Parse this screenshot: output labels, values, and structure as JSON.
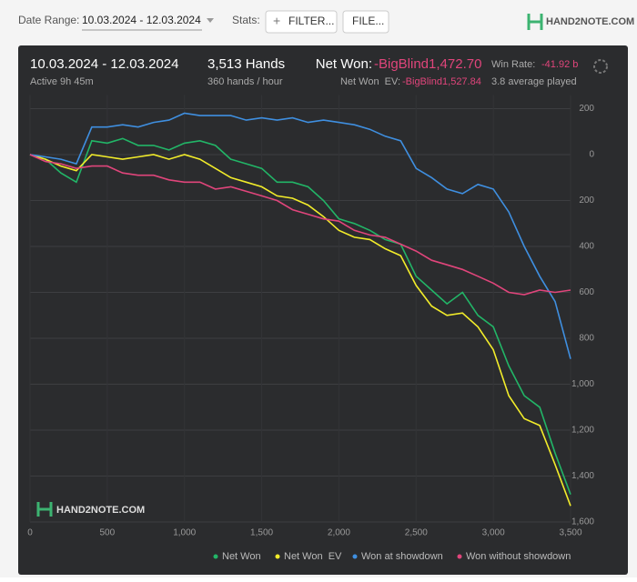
{
  "toolbar": {
    "date_label": "Date Range:",
    "date_value": "10.03.2024 - 12.03.2024",
    "stats_label": "Stats:",
    "filter_button": "FILTER...",
    "file_button": "FILE...",
    "logo": "HAND2NOTE.COM"
  },
  "summary": {
    "range": "10.03.2024 - 12.03.2024",
    "active": "Active 9h 45m",
    "hands": "3,513 Hands",
    "rate": "360 hands / hour",
    "net_won_label": "Net Won:",
    "net_won_value": "-BigBlind1,472.70",
    "ev_label": "Net Won  EV:",
    "ev_value": "-BigBlind1,527.84",
    "win_rate_label": "Win Rate:",
    "win_rate_value": "-41.92 b",
    "average": "3.8 average played"
  },
  "watermark": "HAND2NOTE.COM",
  "chart_data": {
    "type": "line",
    "x": [
      0,
      100,
      200,
      300,
      400,
      500,
      600,
      700,
      800,
      900,
      1000,
      1100,
      1200,
      1300,
      1400,
      1500,
      1600,
      1700,
      1800,
      1900,
      2000,
      2100,
      2200,
      2300,
      2400,
      2500,
      2600,
      2700,
      2800,
      2900,
      3000,
      3100,
      3200,
      3300,
      3400,
      3500
    ],
    "series": [
      {
        "name": "Net Won",
        "color": "#22b567",
        "values": [
          0,
          -20,
          -80,
          -120,
          60,
          50,
          70,
          40,
          40,
          20,
          50,
          60,
          40,
          -20,
          -40,
          -60,
          -120,
          -120,
          -140,
          -200,
          -280,
          -300,
          -330,
          -370,
          -390,
          -530,
          -590,
          -650,
          -600,
          -700,
          -750,
          -920,
          -1050,
          -1100,
          -1300,
          -1480
        ]
      },
      {
        "name": "Net Won  EV",
        "color": "#f2ec2a",
        "values": [
          0,
          -20,
          -50,
          -70,
          0,
          -10,
          -20,
          -10,
          0,
          -20,
          0,
          -20,
          -60,
          -100,
          -120,
          -140,
          -180,
          -190,
          -220,
          -270,
          -330,
          -360,
          -370,
          -410,
          -440,
          -570,
          -660,
          -700,
          -690,
          -750,
          -850,
          -1050,
          -1150,
          -1180,
          -1350,
          -1530
        ]
      },
      {
        "name": "Won at showdown",
        "color": "#3f8fe0",
        "values": [
          0,
          -10,
          -20,
          -40,
          120,
          120,
          130,
          120,
          140,
          150,
          180,
          170,
          170,
          170,
          150,
          160,
          150,
          160,
          140,
          150,
          140,
          130,
          110,
          80,
          60,
          -60,
          -100,
          -150,
          -170,
          -130,
          -150,
          -250,
          -400,
          -530,
          -640,
          -890
        ]
      },
      {
        "name": "Won without showdown",
        "color": "#e0457b",
        "values": [
          0,
          -30,
          -40,
          -60,
          -50,
          -50,
          -80,
          -90,
          -90,
          -110,
          -120,
          -120,
          -150,
          -140,
          -160,
          -180,
          -200,
          -240,
          -260,
          -280,
          -290,
          -330,
          -350,
          -360,
          -390,
          -420,
          -460,
          -480,
          -500,
          -530,
          -560,
          -600,
          -610,
          -590,
          -600,
          -590
        ]
      }
    ],
    "xlim": [
      0,
      3500
    ],
    "xticks": [
      0,
      500,
      {
        "value": 1000,
        "label": "1,000"
      },
      {
        "value": 1500,
        "label": "1,500"
      },
      {
        "value": 2000,
        "label": "2,000"
      },
      {
        "value": 2500,
        "label": "2,500"
      },
      {
        "value": 3000,
        "label": "3,000"
      },
      {
        "value": 3500,
        "label": "3,500"
      }
    ],
    "ylim": [
      -1600,
      200
    ],
    "yticks": [
      200,
      0,
      {
        "value": -200,
        "label": "200"
      },
      {
        "value": -400,
        "label": "400"
      },
      {
        "value": -600,
        "label": "600"
      },
      {
        "value": -800,
        "label": "800"
      },
      {
        "value": -1000,
        "label": "1,000"
      },
      {
        "value": -1200,
        "label": "1,200"
      },
      {
        "value": -1400,
        "label": "1,400"
      },
      {
        "value": -1600,
        "label": "1,600"
      }
    ],
    "grid": true
  }
}
